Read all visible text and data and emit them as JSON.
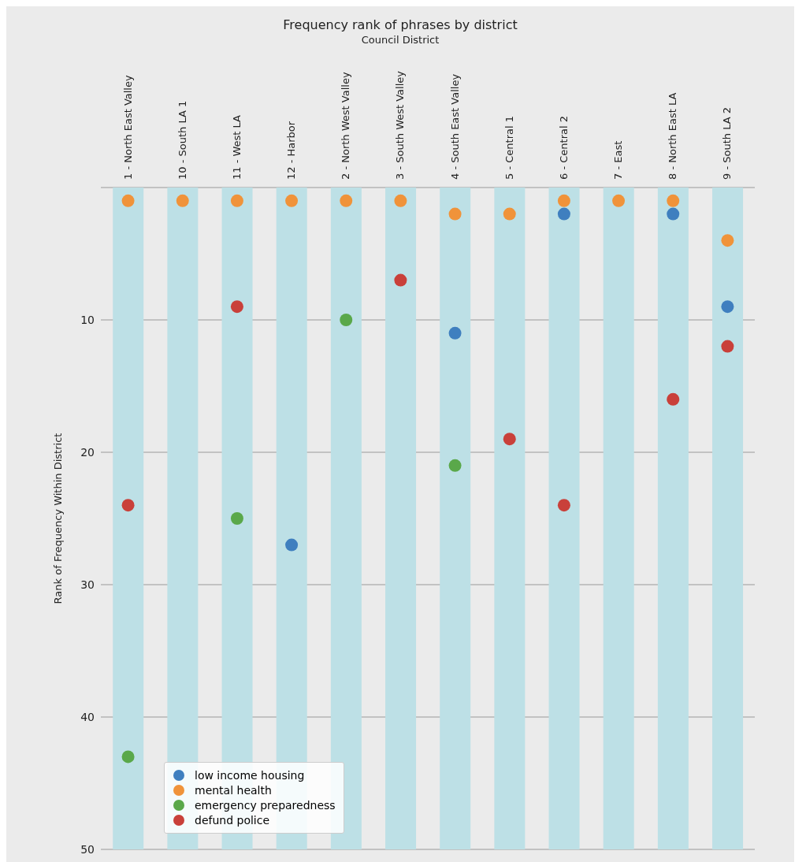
{
  "chart_data": {
    "type": "scatter",
    "title": "Frequency rank of phrases by district",
    "xlabel": "Council District",
    "ylabel": "Rank of Frequency Within District",
    "categories": [
      "1 - North East Valley",
      "10 - South LA 1",
      "11 - West LA",
      "12 - Harbor",
      "2 - North West Valley",
      "3 - South West Valley",
      "4 - South East Valley",
      "5 - Central 1",
      "6 - Central 2",
      "7 - East",
      "8 - North East LA",
      "9 - South LA 2"
    ],
    "series": [
      {
        "type": "bar",
        "color": "#bde0e6",
        "values": [
          50,
          50,
          50,
          50,
          50,
          50,
          50,
          50,
          50,
          50,
          50,
          50
        ]
      },
      {
        "name": "low income housing",
        "color": "#3f7fbf",
        "values": [
          null,
          null,
          null,
          27,
          null,
          null,
          11,
          null,
          2,
          null,
          2,
          9
        ]
      },
      {
        "name": "mental health",
        "color": "#f0933a",
        "values": [
          1,
          1,
          1,
          1,
          1,
          1,
          2,
          2,
          1,
          1,
          1,
          4
        ]
      },
      {
        "name": "emergency preparedness",
        "color": "#5aa84a",
        "values": [
          43,
          null,
          25,
          null,
          10,
          null,
          21,
          null,
          null,
          null,
          null,
          null
        ]
      },
      {
        "name": "defund police",
        "color": "#c9403a",
        "values": [
          24,
          null,
          9,
          null,
          null,
          7,
          null,
          19,
          24,
          null,
          16,
          12
        ]
      }
    ],
    "ylim": [
      50,
      0
    ],
    "yticks": [
      10,
      20,
      30,
      40,
      50
    ],
    "grid": "y",
    "legend": "bottom left",
    "marker": "circle"
  }
}
